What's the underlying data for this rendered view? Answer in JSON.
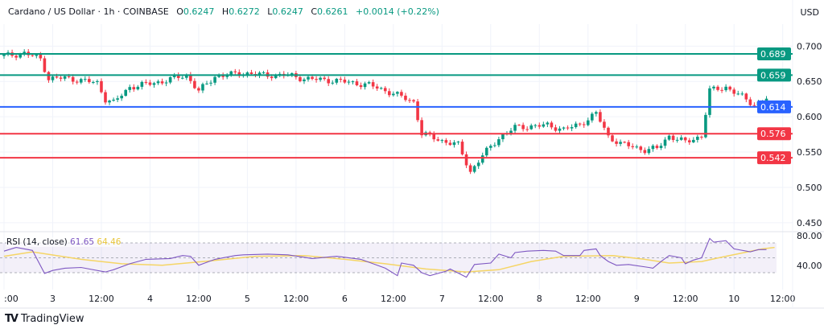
{
  "header": {
    "symbol": "Cardano / US Dollar · 1h · COINBASE",
    "o_label": "O",
    "o": "0.6247",
    "h_label": "H",
    "h": "0.6272",
    "l_label": "L",
    "l": "0.6247",
    "c_label": "C",
    "c": "0.6261",
    "change": "+0.0014 (+0.22%)",
    "currency": "USD"
  },
  "brand": {
    "logo": "TV",
    "name": "TradingView"
  },
  "colors": {
    "up": "#089981",
    "down": "#f23645",
    "support_blue": "#2962ff",
    "resistance_green": "#089981",
    "rsi": "#7e57c2",
    "rsi_ma": "#f5d565"
  },
  "chart_data": [
    {
      "type": "candlestick",
      "title": "Cardano / US Dollar · 1h",
      "ylim": [
        0.44,
        0.712
      ],
      "y_ticks": [
        "0.700",
        "0.650",
        "0.600",
        "0.550",
        "0.500",
        "0.450"
      ],
      "x_ticks": [
        ":00",
        "3",
        "12:00",
        "4",
        "12:00",
        "5",
        "12:00",
        "6",
        "12:00",
        "7",
        "12:00",
        "8",
        "12:00",
        "9",
        "12:00",
        "10",
        "12:00"
      ],
      "x_tick_hours": [
        0,
        12,
        24,
        36,
        48,
        60,
        72,
        84,
        96,
        108,
        120,
        132,
        144,
        156,
        168,
        180,
        192
      ],
      "close_path_by_hour": [
        [
          0,
          0.686
        ],
        [
          5,
          0.69
        ],
        [
          9,
          0.682
        ],
        [
          11,
          0.654
        ],
        [
          15,
          0.655
        ],
        [
          23,
          0.648
        ],
        [
          25,
          0.625
        ],
        [
          27,
          0.62
        ],
        [
          31,
          0.642
        ],
        [
          39,
          0.65
        ],
        [
          45,
          0.659
        ],
        [
          48,
          0.636
        ],
        [
          52,
          0.657
        ],
        [
          59,
          0.662
        ],
        [
          64,
          0.659
        ],
        [
          70,
          0.659
        ],
        [
          74,
          0.654
        ],
        [
          82,
          0.651
        ],
        [
          90,
          0.645
        ],
        [
          96,
          0.633
        ],
        [
          101,
          0.621
        ],
        [
          103,
          0.576
        ],
        [
          108,
          0.566
        ],
        [
          112,
          0.56
        ],
        [
          115,
          0.522
        ],
        [
          118,
          0.545
        ],
        [
          122,
          0.57
        ],
        [
          126,
          0.585
        ],
        [
          134,
          0.588
        ],
        [
          138,
          0.582
        ],
        [
          142,
          0.589
        ],
        [
          146,
          0.605
        ],
        [
          149,
          0.572
        ],
        [
          152,
          0.562
        ],
        [
          158,
          0.553
        ],
        [
          161,
          0.555
        ],
        [
          164,
          0.573
        ],
        [
          168,
          0.564
        ],
        [
          172,
          0.573
        ],
        [
          174,
          0.637
        ],
        [
          178,
          0.642
        ],
        [
          182,
          0.628
        ],
        [
          185,
          0.617
        ],
        [
          188,
          0.626
        ]
      ],
      "levels": [
        {
          "label": "0.689",
          "value": 0.689,
          "color": "#089981"
        },
        {
          "label": "0.659",
          "value": 0.659,
          "color": "#089981"
        },
        {
          "label": "0.614",
          "value": 0.614,
          "color": "#2962ff"
        },
        {
          "label": "0.576",
          "value": 0.576,
          "color": "#f23645"
        },
        {
          "label": "0.542",
          "value": 0.542,
          "color": "#f23645"
        }
      ]
    },
    {
      "type": "line",
      "title": "RSI (14, close)",
      "rsi_value": "61.65",
      "ma_value": "64.46",
      "ylim": [
        17,
        90
      ],
      "y_ticks": [
        "80.00",
        "40.00"
      ],
      "bands": [
        70,
        50,
        30
      ],
      "rsi_by_hour": [
        [
          0,
          59
        ],
        [
          3,
          64
        ],
        [
          7,
          60
        ],
        [
          10,
          29
        ],
        [
          12,
          33
        ],
        [
          15,
          36
        ],
        [
          19,
          37
        ],
        [
          25,
          31
        ],
        [
          27,
          34
        ],
        [
          31,
          42
        ],
        [
          35,
          48
        ],
        [
          41,
          49
        ],
        [
          44,
          53
        ],
        [
          46,
          52
        ],
        [
          48,
          40
        ],
        [
          52,
          48
        ],
        [
          57,
          53
        ],
        [
          59,
          54
        ],
        [
          65,
          55
        ],
        [
          70,
          54
        ],
        [
          76,
          49
        ],
        [
          82,
          52
        ],
        [
          88,
          48
        ],
        [
          94,
          36
        ],
        [
          97,
          26
        ],
        [
          98,
          43
        ],
        [
          101,
          40
        ],
        [
          103,
          30
        ],
        [
          105,
          26
        ],
        [
          109,
          32
        ],
        [
          110,
          35
        ],
        [
          114,
          24
        ],
        [
          116,
          41
        ],
        [
          120,
          43
        ],
        [
          122,
          55
        ],
        [
          125,
          50
        ],
        [
          126,
          57
        ],
        [
          129,
          59
        ],
        [
          133,
          60
        ],
        [
          136,
          59
        ],
        [
          138,
          53
        ],
        [
          142,
          53
        ],
        [
          143,
          60
        ],
        [
          146,
          62
        ],
        [
          147,
          53
        ],
        [
          149,
          45
        ],
        [
          151,
          40
        ],
        [
          154,
          41
        ],
        [
          159,
          37
        ],
        [
          160,
          36
        ],
        [
          162,
          45
        ],
        [
          164,
          53
        ],
        [
          167,
          50
        ],
        [
          168,
          42
        ],
        [
          170,
          47
        ],
        [
          172,
          50
        ],
        [
          174,
          76
        ],
        [
          175,
          71
        ],
        [
          178,
          73
        ],
        [
          180,
          62
        ],
        [
          184,
          58
        ],
        [
          186,
          61
        ],
        [
          188,
          61
        ]
      ],
      "ma_by_hour": [
        [
          0,
          52
        ],
        [
          7,
          58
        ],
        [
          19,
          48
        ],
        [
          29,
          42
        ],
        [
          39,
          40
        ],
        [
          51,
          46
        ],
        [
          62,
          52
        ],
        [
          74,
          53
        ],
        [
          84,
          48
        ],
        [
          94,
          42
        ],
        [
          104,
          35
        ],
        [
          114,
          31
        ],
        [
          122,
          34
        ],
        [
          130,
          45
        ],
        [
          138,
          52
        ],
        [
          150,
          53
        ],
        [
          158,
          48
        ],
        [
          164,
          43
        ],
        [
          172,
          45
        ],
        [
          178,
          52
        ],
        [
          187,
          62
        ],
        [
          190,
          64
        ]
      ]
    }
  ]
}
